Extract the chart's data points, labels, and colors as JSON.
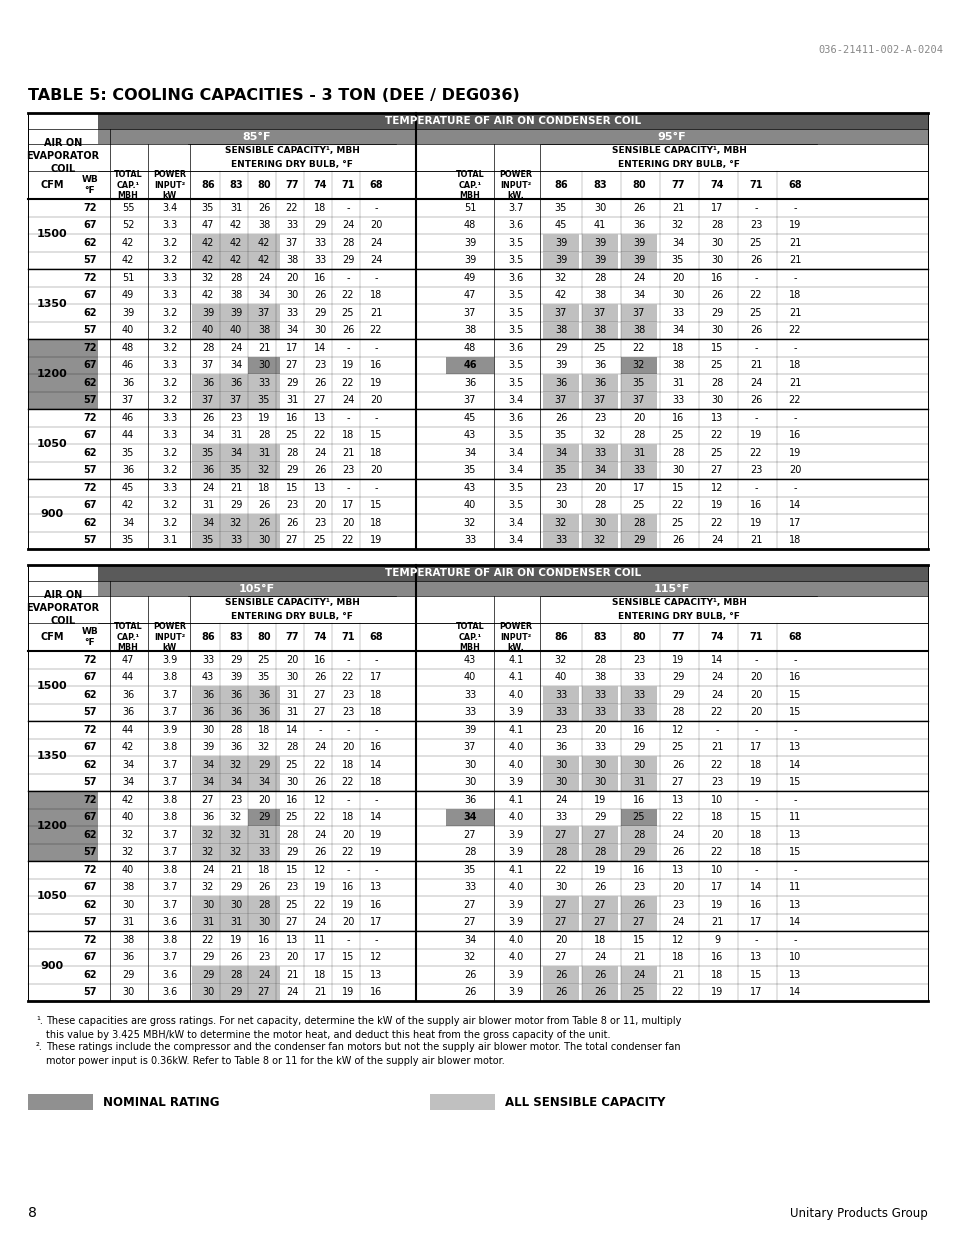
{
  "title": "TABLE 5: COOLING CAPACITIES - 3 TON (DEE / DEG036)",
  "doc_number": "036-21411-002-A-0204",
  "table1": {
    "left_temp": "85°F",
    "right_temp": "95°F",
    "rows": [
      [
        1500,
        72,
        55,
        "3.4",
        35,
        31,
        26,
        22,
        18,
        "-",
        "-",
        51,
        "3.7",
        35,
        30,
        26,
        21,
        17,
        "-",
        "-"
      ],
      [
        1500,
        67,
        52,
        "3.3",
        47,
        42,
        38,
        33,
        29,
        24,
        20,
        48,
        "3.6",
        45,
        41,
        36,
        32,
        28,
        23,
        19
      ],
      [
        1500,
        62,
        42,
        "3.2",
        42,
        42,
        42,
        37,
        33,
        28,
        24,
        39,
        "3.5",
        39,
        39,
        39,
        34,
        30,
        25,
        21
      ],
      [
        1500,
        57,
        42,
        "3.2",
        42,
        42,
        42,
        38,
        33,
        29,
        24,
        39,
        "3.5",
        39,
        39,
        39,
        35,
        30,
        26,
        21
      ],
      [
        1350,
        72,
        51,
        "3.3",
        32,
        28,
        24,
        20,
        16,
        "-",
        "-",
        49,
        "3.6",
        32,
        28,
        24,
        20,
        16,
        "-",
        "-"
      ],
      [
        1350,
        67,
        49,
        "3.3",
        42,
        38,
        34,
        30,
        26,
        22,
        18,
        47,
        "3.5",
        42,
        38,
        34,
        30,
        26,
        22,
        18
      ],
      [
        1350,
        62,
        39,
        "3.2",
        39,
        39,
        37,
        33,
        29,
        25,
        21,
        37,
        "3.5",
        37,
        37,
        37,
        33,
        29,
        25,
        21
      ],
      [
        1350,
        57,
        40,
        "3.2",
        40,
        40,
        38,
        34,
        30,
        26,
        22,
        38,
        "3.5",
        38,
        38,
        38,
        34,
        30,
        26,
        22
      ],
      [
        1200,
        72,
        48,
        "3.2",
        28,
        24,
        21,
        17,
        14,
        "-",
        "-",
        48,
        "3.6",
        29,
        25,
        22,
        18,
        15,
        "-",
        "-"
      ],
      [
        1200,
        67,
        46,
        "3.3",
        37,
        34,
        30,
        27,
        23,
        19,
        16,
        46,
        "3.5",
        39,
        36,
        32,
        38,
        25,
        21,
        18
      ],
      [
        1200,
        62,
        36,
        "3.2",
        36,
        36,
        33,
        29,
        26,
        22,
        19,
        36,
        "3.5",
        36,
        36,
        35,
        31,
        28,
        24,
        21
      ],
      [
        1200,
        57,
        37,
        "3.2",
        37,
        37,
        35,
        31,
        27,
        24,
        20,
        37,
        "3.4",
        37,
        37,
        37,
        33,
        30,
        26,
        22
      ],
      [
        1050,
        72,
        46,
        "3.3",
        26,
        23,
        19,
        16,
        13,
        "-",
        "-",
        45,
        "3.6",
        26,
        23,
        20,
        16,
        13,
        "-",
        "-"
      ],
      [
        1050,
        67,
        44,
        "3.3",
        34,
        31,
        28,
        25,
        22,
        18,
        15,
        43,
        "3.5",
        35,
        32,
        28,
        25,
        22,
        19,
        16
      ],
      [
        1050,
        62,
        35,
        "3.2",
        35,
        34,
        31,
        28,
        24,
        21,
        18,
        34,
        "3.4",
        34,
        33,
        31,
        28,
        25,
        22,
        19
      ],
      [
        1050,
        57,
        36,
        "3.2",
        36,
        35,
        32,
        29,
        26,
        23,
        20,
        35,
        "3.4",
        35,
        34,
        33,
        30,
        27,
        23,
        20
      ],
      [
        900,
        72,
        45,
        "3.3",
        24,
        21,
        18,
        15,
        13,
        "-",
        "-",
        43,
        "3.5",
        23,
        20,
        17,
        15,
        12,
        "-",
        "-"
      ],
      [
        900,
        67,
        42,
        "3.2",
        31,
        29,
        26,
        23,
        20,
        17,
        15,
        40,
        "3.5",
        30,
        28,
        25,
        22,
        19,
        16,
        14
      ],
      [
        900,
        62,
        34,
        "3.2",
        34,
        32,
        26,
        26,
        23,
        20,
        18,
        32,
        "3.4",
        32,
        30,
        28,
        25,
        22,
        19,
        17
      ],
      [
        900,
        57,
        35,
        "3.1",
        35,
        33,
        30,
        27,
        25,
        22,
        19,
        33,
        "3.4",
        33,
        32,
        29,
        26,
        24,
        21,
        18
      ]
    ]
  },
  "table2": {
    "left_temp": "105°F",
    "right_temp": "115°F",
    "rows": [
      [
        1500,
        72,
        47,
        "3.9",
        33,
        29,
        25,
        20,
        16,
        "-",
        "-",
        43,
        "4.1",
        32,
        28,
        23,
        19,
        14,
        "-",
        "-"
      ],
      [
        1500,
        67,
        44,
        "3.8",
        43,
        39,
        35,
        30,
        26,
        22,
        17,
        40,
        "4.1",
        40,
        38,
        33,
        29,
        24,
        20,
        16
      ],
      [
        1500,
        62,
        36,
        "3.7",
        36,
        36,
        36,
        31,
        27,
        23,
        18,
        33,
        "4.0",
        33,
        33,
        33,
        29,
        24,
        20,
        15
      ],
      [
        1500,
        57,
        36,
        "3.7",
        36,
        36,
        36,
        31,
        27,
        23,
        18,
        33,
        "3.9",
        33,
        33,
        33,
        28,
        22,
        20,
        15
      ],
      [
        1350,
        72,
        44,
        "3.9",
        30,
        28,
        18,
        14,
        "-",
        "-",
        "-",
        39,
        "4.1",
        23,
        20,
        16,
        12,
        "-",
        "-",
        "-"
      ],
      [
        1350,
        67,
        42,
        "3.8",
        39,
        36,
        32,
        28,
        24,
        20,
        16,
        37,
        "4.0",
        36,
        33,
        29,
        25,
        21,
        17,
        13
      ],
      [
        1350,
        62,
        34,
        "3.7",
        34,
        32,
        29,
        25,
        22,
        18,
        14,
        30,
        "4.0",
        30,
        30,
        30,
        26,
        22,
        18,
        14
      ],
      [
        1350,
        57,
        34,
        "3.7",
        34,
        34,
        34,
        30,
        26,
        22,
        18,
        30,
        "3.9",
        30,
        30,
        31,
        27,
        23,
        19,
        15
      ],
      [
        1200,
        72,
        42,
        "3.8",
        27,
        23,
        20,
        16,
        12,
        "-",
        "-",
        36,
        "4.1",
        24,
        19,
        16,
        13,
        10,
        "-",
        "-"
      ],
      [
        1200,
        67,
        40,
        "3.8",
        36,
        32,
        29,
        25,
        22,
        18,
        14,
        34,
        "4.0",
        33,
        29,
        25,
        22,
        18,
        15,
        11
      ],
      [
        1200,
        62,
        32,
        "3.7",
        32,
        32,
        31,
        28,
        24,
        20,
        19,
        27,
        "3.9",
        27,
        27,
        28,
        24,
        20,
        18,
        13
      ],
      [
        1200,
        57,
        32,
        "3.7",
        32,
        32,
        33,
        29,
        26,
        22,
        19,
        28,
        "3.9",
        28,
        28,
        29,
        26,
        22,
        18,
        15
      ],
      [
        1050,
        72,
        40,
        "3.8",
        24,
        21,
        18,
        15,
        12,
        "-",
        "-",
        35,
        "4.1",
        22,
        19,
        16,
        13,
        10,
        "-",
        "-"
      ],
      [
        1050,
        67,
        38,
        "3.7",
        32,
        29,
        26,
        23,
        19,
        16,
        13,
        33,
        "4.0",
        30,
        26,
        23,
        20,
        17,
        14,
        11
      ],
      [
        1050,
        62,
        30,
        "3.7",
        30,
        30,
        28,
        25,
        22,
        19,
        16,
        27,
        "3.9",
        27,
        27,
        26,
        23,
        19,
        16,
        13
      ],
      [
        1050,
        57,
        31,
        "3.6",
        31,
        31,
        30,
        27,
        24,
        20,
        17,
        27,
        "3.9",
        27,
        27,
        27,
        24,
        21,
        17,
        14
      ],
      [
        900,
        72,
        38,
        "3.8",
        22,
        19,
        16,
        13,
        11,
        "-",
        "-",
        34,
        "4.0",
        20,
        18,
        15,
        12,
        9,
        "-",
        "-"
      ],
      [
        900,
        67,
        36,
        "3.7",
        29,
        26,
        23,
        20,
        17,
        15,
        12,
        32,
        "4.0",
        27,
        24,
        21,
        18,
        16,
        13,
        10
      ],
      [
        900,
        62,
        29,
        "3.6",
        29,
        28,
        24,
        21,
        18,
        15,
        13,
        26,
        "3.9",
        26,
        26,
        24,
        21,
        18,
        15,
        13
      ],
      [
        900,
        57,
        30,
        "3.6",
        30,
        29,
        27,
        24,
        21,
        19,
        16,
        26,
        "3.9",
        26,
        26,
        25,
        22,
        19,
        17,
        14
      ]
    ]
  },
  "footnote1": "These capacities are gross ratings. For net capacity, determine the kW of the supply air blower motor from Table 8 or 11, multiply\nthis value by 3.425 MBH/kW to determine the motor heat, and deduct this heat from the gross capacity of the unit.",
  "footnote2": "These ratings include the compressor and the condenser fan motors but not the supply air blower motor. The total condenser fan\nmotor power input is 0.36kW. Refer to Table 8 or 11 for the kW of the supply air blower motor."
}
